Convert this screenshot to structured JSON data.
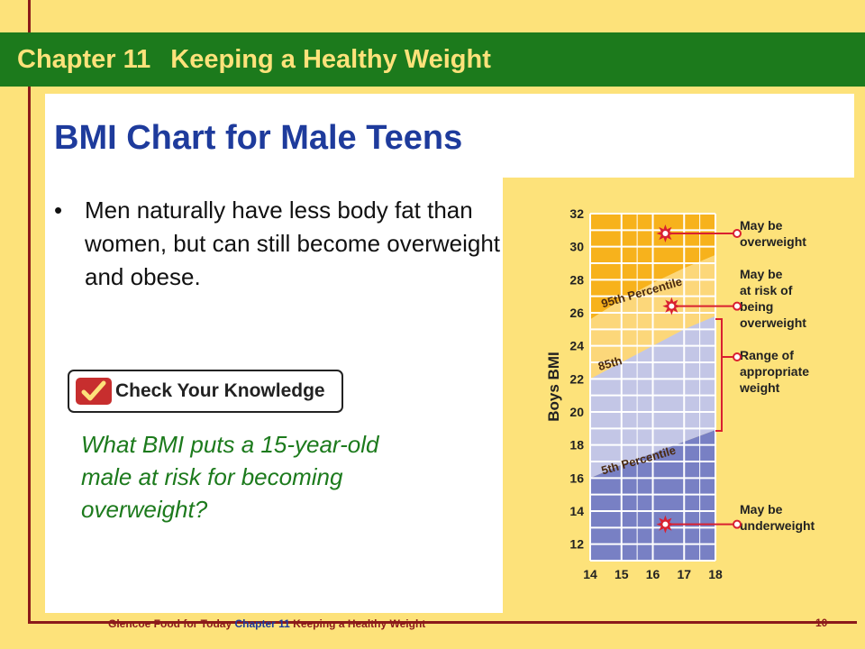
{
  "header": {
    "chapter": "Chapter 11",
    "title": "Keeping a Healthy Weight"
  },
  "slide": {
    "title": "BMI Chart for Male Teens",
    "bullet_marker": "•",
    "bullet": "Men naturally have less body fat than women, but can still become overweight and obese.",
    "check_label": "Check Your Knowledge",
    "question": "What BMI puts a 15-year-old male at risk for becoming overweight?"
  },
  "footer": {
    "book": "Glencoe Food for Today ",
    "chapter": "Chapter 11 ",
    "title": "Keeping a Healthy Weight",
    "page": "10"
  },
  "colors": {
    "header_green": "#1c7a1c",
    "title_blue": "#1e3b9c",
    "background_yellow": "#fde27a",
    "frame_red": "#8b1a1a",
    "question_green": "#1c7a1c"
  },
  "icons": {
    "check": "check-mark-icon",
    "marker": "starburst-icon"
  },
  "chart_data": {
    "type": "area",
    "ylabel": "Boys BMI",
    "xlabel": "",
    "x": [
      14,
      15,
      16,
      17,
      18
    ],
    "y_ticks": [
      12,
      14,
      16,
      18,
      20,
      22,
      24,
      26,
      28,
      30,
      32
    ],
    "xlim": [
      14,
      18
    ],
    "ylim": [
      11,
      32
    ],
    "grid": true,
    "bands": [
      {
        "label": "5th Percentile",
        "values": [
          16.0,
          16.8,
          17.5,
          18.2,
          18.9
        ]
      },
      {
        "label": "85th",
        "values": [
          22.0,
          23.0,
          24.0,
          25.0,
          25.8
        ]
      },
      {
        "label": "95th Percentile",
        "values": [
          25.6,
          26.8,
          27.8,
          28.7,
          29.5
        ]
      }
    ],
    "markers": [
      {
        "x": 16.4,
        "y": 30.8
      },
      {
        "x": 16.6,
        "y": 26.4
      },
      {
        "x": 16.4,
        "y": 13.2
      }
    ],
    "annotations": [
      {
        "text": "May be overweight",
        "lines": [
          "May be",
          "overweight"
        ]
      },
      {
        "text": "May be at risk of being overweight",
        "lines": [
          "May be",
          "at risk of",
          "being",
          "overweight"
        ]
      },
      {
        "text": "Range of appropriate weight",
        "lines": [
          "Range of",
          "appropriate",
          "weight"
        ]
      },
      {
        "text": "May be underweight",
        "lines": [
          "May be",
          "underweight"
        ]
      }
    ],
    "region_colors": {
      "overweight": "#f7b21c",
      "at_risk": "#fcd77a",
      "appropriate": "#c3c6e6",
      "underweight": "#7880c4",
      "leader": "#d92030"
    }
  }
}
